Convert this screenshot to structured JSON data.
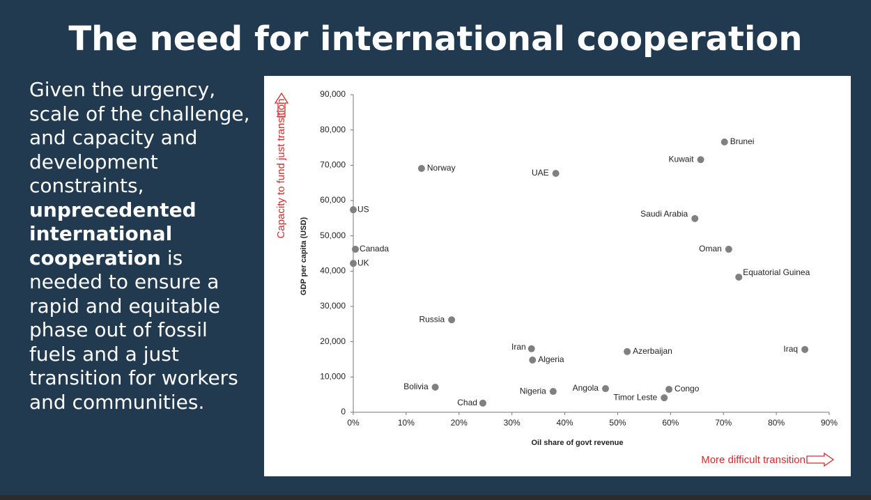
{
  "title": "The need for international cooperation",
  "body": {
    "parts": [
      {
        "text": "Given the urgency, scale of the challenge, and capacity and development constraints, ",
        "bold": false
      },
      {
        "text": "unprecedented international cooperation",
        "bold": true
      },
      {
        "text": " is needed to ensure a rapid and equitable phase out of fossil fuels and a just transition for workers and communities.",
        "bold": false
      }
    ]
  },
  "chart_data": {
    "type": "scatter",
    "x_label": "Oil share of govt revenue",
    "y_label": "GDP per capita  (USD)",
    "annotations": [
      "Capacity to fund just transition",
      "More difficult transition"
    ],
    "color": "#808080",
    "xlim": [
      0,
      90
    ],
    "xticks": [
      {
        "value": 0,
        "label": "0%"
      },
      {
        "value": 10,
        "label": "10%"
      },
      {
        "value": 20,
        "label": "20%"
      },
      {
        "value": 30,
        "label": "30%"
      },
      {
        "value": 40,
        "label": "40%"
      },
      {
        "value": 50,
        "label": "50%"
      },
      {
        "value": 60,
        "label": "60%"
      },
      {
        "value": 70,
        "label": "70%"
      },
      {
        "value": 80,
        "label": "80%"
      },
      {
        "value": 90,
        "label": "90%"
      }
    ],
    "ylim": [
      0,
      90000
    ],
    "yticks": [
      0,
      {
        "value": 10000,
        "label": "10,000"
      },
      {
        "value": 20000,
        "label": "20,000"
      },
      {
        "value": 30000,
        "label": "30,000"
      },
      {
        "value": 40000,
        "label": "40,000"
      },
      {
        "value": 50000,
        "label": "50,000"
      },
      {
        "value": 60000,
        "label": "60,000"
      },
      {
        "value": 70000,
        "label": "70,000"
      },
      {
        "value": 80000,
        "label": "80,000"
      },
      {
        "value": 90000,
        "label": "90,000"
      }
    ],
    "labels": [
      "US",
      "Canada",
      "UK",
      "Norway",
      "UAE",
      "Brunei",
      "Kuwait",
      "Saudi Arabia",
      "Oman",
      "Equatorial Guinea",
      "Russia",
      "Iran",
      "Algeria",
      "Azerbaijan",
      "Iraq",
      "Bolivia",
      "Chad",
      "Nigeria",
      "Angola",
      "Timor Leste",
      "Congo"
    ],
    "x": [
      0,
      0.4,
      0,
      12.9,
      38.3,
      70.2,
      65.7,
      64.6,
      71.0,
      72.9,
      18.6,
      33.7,
      33.9,
      51.8,
      85.4,
      15.5,
      24.5,
      37.8,
      47.7,
      58.8,
      59.7
    ],
    "values": [
      57400,
      46200,
      42200,
      69100,
      67700,
      76600,
      71600,
      54900,
      46200,
      38300,
      26200,
      18000,
      14800,
      17200,
      17800,
      7100,
      2600,
      5900,
      6700,
      4100,
      6500
    ]
  }
}
